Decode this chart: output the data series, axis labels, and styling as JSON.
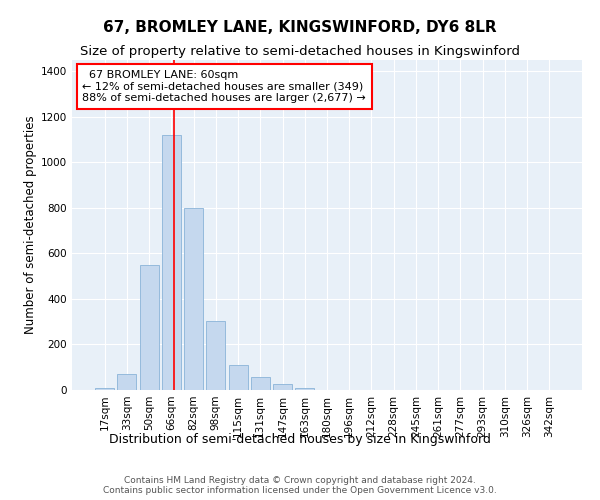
{
  "title": "67, BROMLEY LANE, KINGSWINFORD, DY6 8LR",
  "subtitle": "Size of property relative to semi-detached houses in Kingswinford",
  "xlabel": "Distribution of semi-detached houses by size in Kingswinford",
  "ylabel": "Number of semi-detached properties",
  "footer_line1": "Contains HM Land Registry data © Crown copyright and database right 2024.",
  "footer_line2": "Contains public sector information licensed under the Open Government Licence v3.0.",
  "bar_labels": [
    "17sqm",
    "33sqm",
    "50sqm",
    "66sqm",
    "82sqm",
    "98sqm",
    "115sqm",
    "131sqm",
    "147sqm",
    "163sqm",
    "180sqm",
    "196sqm",
    "212sqm",
    "228sqm",
    "245sqm",
    "261sqm",
    "277sqm",
    "293sqm",
    "310sqm",
    "326sqm",
    "342sqm"
  ],
  "bar_values": [
    10,
    70,
    550,
    1120,
    800,
    305,
    110,
    55,
    25,
    10,
    0,
    0,
    0,
    0,
    0,
    0,
    0,
    0,
    0,
    0,
    0
  ],
  "bar_color": "#c5d8ee",
  "bar_edgecolor": "#8ab4d8",
  "background_color": "#e8f0f8",
  "ylim": [
    0,
    1450
  ],
  "yticks": [
    0,
    200,
    400,
    600,
    800,
    1000,
    1200,
    1400
  ],
  "property_label": "67 BROMLEY LANE: 60sqm",
  "pct_smaller": 12,
  "n_smaller": 349,
  "pct_larger": 88,
  "n_larger": 2677,
  "vline_bar_index": 3,
  "title_fontsize": 11,
  "subtitle_fontsize": 9.5,
  "ylabel_fontsize": 8.5,
  "xlabel_fontsize": 9,
  "tick_fontsize": 7.5,
  "annot_fontsize": 8,
  "footer_fontsize": 6.5
}
